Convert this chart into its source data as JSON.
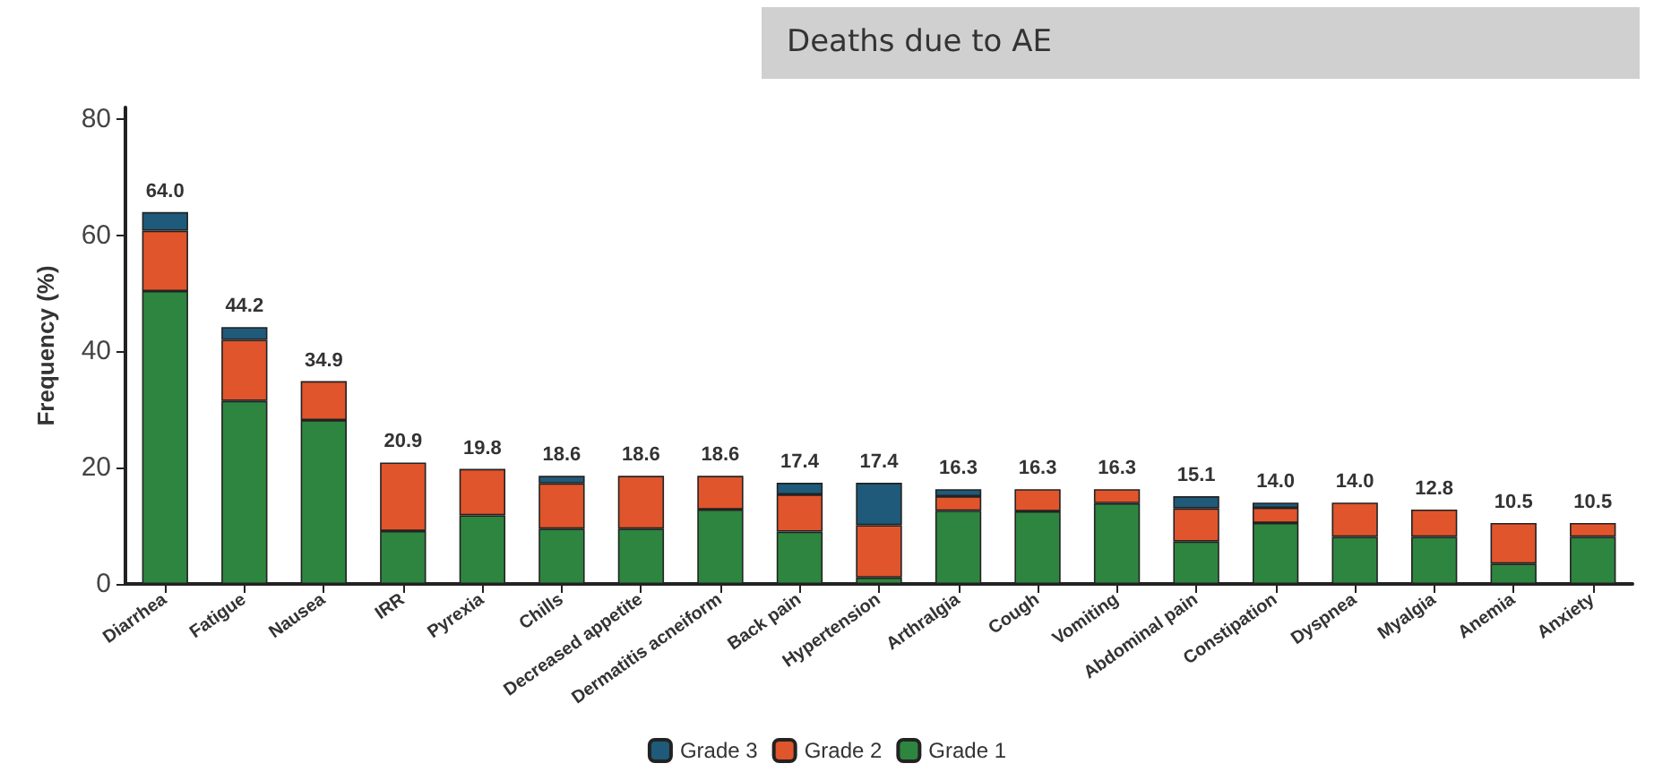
{
  "chart_data": {
    "type": "bar",
    "stacked": true,
    "ylabel": "Frequency (%)",
    "annotations": [
      "Deaths due to AE"
    ],
    "categories": [
      "Diarrhea",
      "Fatigue",
      "Nausea",
      "IRR",
      "Pyrexia",
      "Chills",
      "Decreased appetite",
      "Dermatitis acneiform",
      "Back pain",
      "Hypertension",
      "Arthralgia",
      "Cough",
      "Vomiting",
      "Abdominal pain",
      "Constipation",
      "Dyspnea",
      "Myalgia",
      "Anemia",
      "Anxiety"
    ],
    "series": [
      {
        "name": "Grade 1",
        "color": "#2e8540",
        "values": [
          50.4,
          31.5,
          28.2,
          9.1,
          11.8,
          9.5,
          9.5,
          12.8,
          9.0,
          1.1,
          12.6,
          12.5,
          13.9,
          7.3,
          10.5,
          8.1,
          8.1,
          3.5,
          8.1
        ]
      },
      {
        "name": "Grade 2",
        "color": "#e0552b",
        "values": [
          10.4,
          10.5,
          6.7,
          11.8,
          8.0,
          7.8,
          9.1,
          5.8,
          6.4,
          9.0,
          2.5,
          3.8,
          2.4,
          5.7,
          2.6,
          5.9,
          4.7,
          7.0,
          2.4
        ]
      },
      {
        "name": "Grade 3",
        "color": "#1f5a7a",
        "values": [
          3.2,
          2.2,
          null,
          null,
          null,
          1.3,
          null,
          null,
          2.0,
          7.3,
          1.2,
          null,
          null,
          2.1,
          0.9,
          null,
          null,
          null,
          null
        ]
      }
    ],
    "totals": [
      "64.0",
      "44.2",
      "34.9",
      "20.9",
      "19.8",
      "18.6",
      "18.6",
      "18.6",
      "17.4",
      "17.4",
      "16.3",
      "16.3",
      "16.3",
      "15.1",
      "14.0",
      "14.0",
      "12.8",
      "10.5",
      "10.5"
    ],
    "ylim": [
      0,
      82
    ],
    "yticks": [
      0,
      20,
      40,
      60,
      80
    ],
    "grid": false,
    "legend": "bottom"
  }
}
